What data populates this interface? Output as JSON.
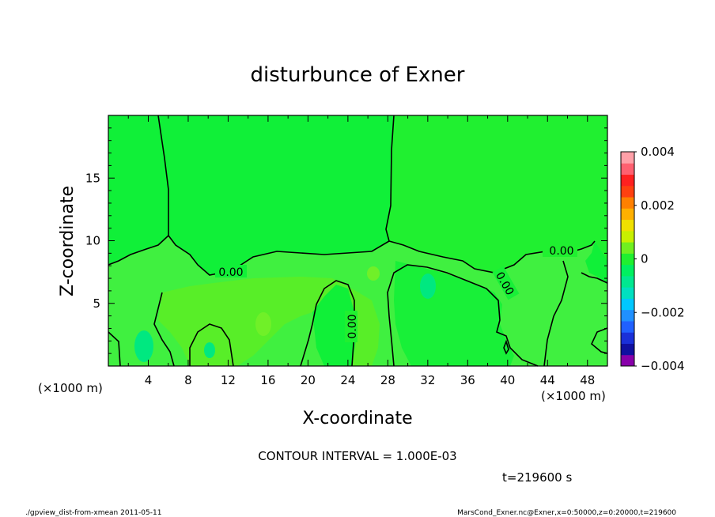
{
  "chart_data": {
    "type": "heatmap",
    "title": "disturbunce of Exner",
    "xlabel": "X-coordinate",
    "ylabel": "Z-coordinate",
    "x_unit": "(×1000 m)",
    "y_unit": "(×1000 m)",
    "xlim": [
      0,
      50
    ],
    "ylim": [
      0,
      20
    ],
    "x_ticks": [
      4,
      8,
      12,
      16,
      20,
      24,
      28,
      32,
      36,
      40,
      44,
      48
    ],
    "y_ticks": [
      5,
      10,
      15
    ],
    "colorbar": {
      "min": -0.004,
      "max": 0.004,
      "tick_labels": [
        "0.004",
        "0.002",
        "0",
        "−0.002",
        "−0.004"
      ],
      "tick_values": [
        0.004,
        0.002,
        0,
        -0.002,
        -0.004
      ],
      "colors_bottom_to_top": [
        "#8800aa",
        "#1010a0",
        "#1a30d8",
        "#2060ff",
        "#2090ff",
        "#00c8ff",
        "#00e0c0",
        "#00e890",
        "#00f060",
        "#20f030",
        "#70f020",
        "#c8f000",
        "#f0e000",
        "#ffb000",
        "#ff8000",
        "#ff4010",
        "#ff2020",
        "#ff6070",
        "#ffa0a8"
      ]
    },
    "contour_label": "0.00",
    "contour_interval": "CONTOUR INTERVAL = 1.000E-03",
    "time": "t=219600 s"
  },
  "footer": {
    "left": "./gpview_dist-from-xmean   2011-05-11",
    "right": "MarsCond_Exner.nc@Exner,x=0:50000,z=0:20000,t=219600"
  },
  "colors": {
    "field_positive": "#40f040",
    "field_zero": "#10f038",
    "field_neg_dark": "#00e878",
    "field_warm": "#58ee28"
  }
}
